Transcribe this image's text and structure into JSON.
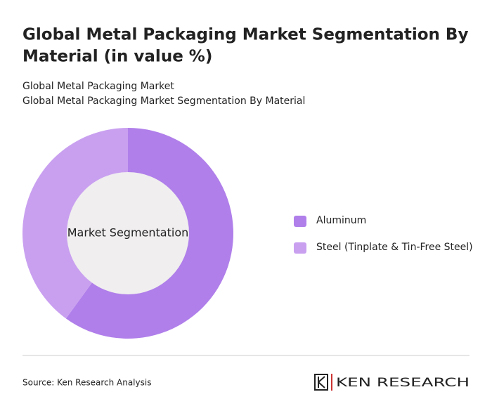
{
  "chart_data": {
    "type": "donut",
    "title": "Global Metal Packaging Market Segmentation By Material (in value %)",
    "subtitle": [
      "Global Metal Packaging Market",
      "Global Metal Packaging Market Segmentation By Material"
    ],
    "center_label": "Market Segmentation",
    "categories": [
      "Aluminum",
      "Steel (Tinplate & Tin-Free Steel)"
    ],
    "values": [
      60,
      40
    ],
    "colors": [
      "#b07fea",
      "#c9a0f0"
    ],
    "legend": "right"
  },
  "footer": {
    "source": "Source: Ken Research Analysis",
    "brand": "KEN RESEARCH"
  }
}
